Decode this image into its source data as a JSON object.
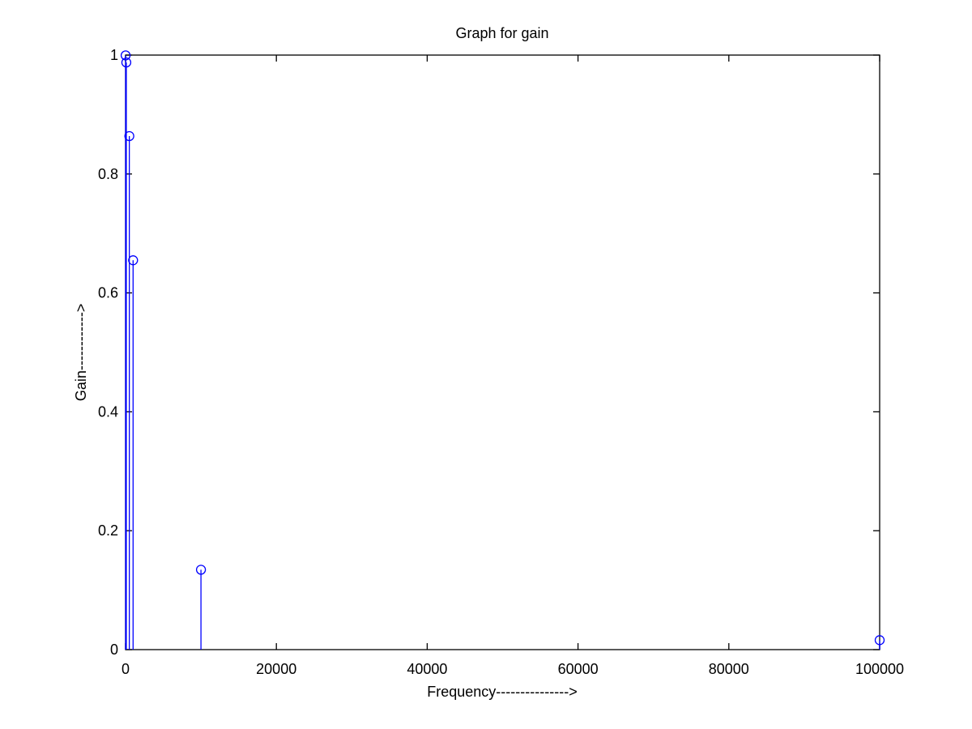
{
  "chart_data": {
    "type": "stem",
    "title": "Graph for gain",
    "xlabel": "Frequency--------------->",
    "ylabel": "Gain------------>",
    "xlim": [
      0,
      100000
    ],
    "ylim": [
      0,
      1
    ],
    "xticks": [
      0,
      20000,
      40000,
      60000,
      80000,
      100000
    ],
    "yticks": [
      0,
      0.2,
      0.4,
      0.6,
      0.8,
      1
    ],
    "xtick_labels": [
      "0",
      "20000",
      "40000",
      "60000",
      "80000",
      "100000"
    ],
    "ytick_labels": [
      "0",
      "0.2",
      "0.4",
      "0.6",
      "0.8",
      "1"
    ],
    "grid": false,
    "marker": "circle",
    "series": [
      {
        "color": "#0000ff",
        "x": [
          10,
          100,
          500,
          1000,
          10000,
          100000
        ],
        "y": [
          0.9995,
          0.9876,
          0.8638,
          0.6549,
          0.1344,
          0.0159
        ]
      }
    ]
  }
}
